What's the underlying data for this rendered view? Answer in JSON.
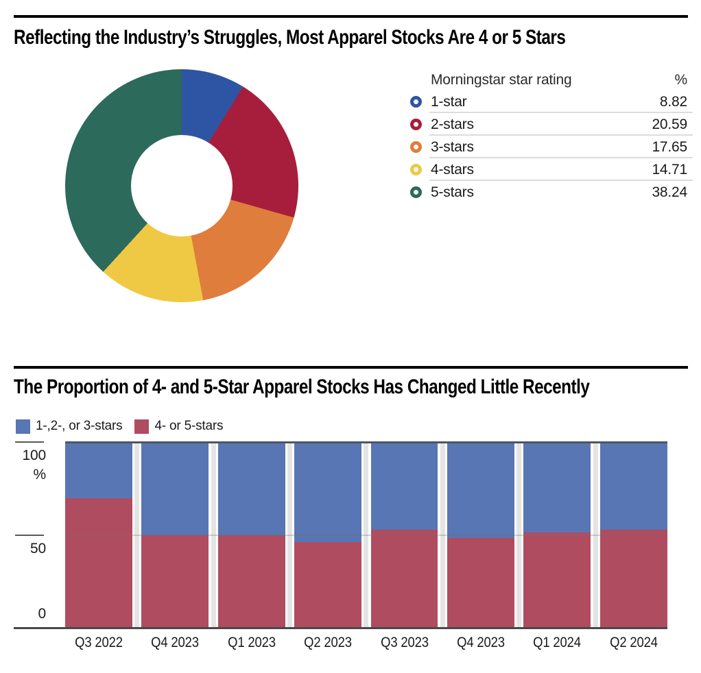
{
  "page": {
    "background": "#ffffff",
    "rule_color": "#000000"
  },
  "chart_data": [
    {
      "type": "pie",
      "subtype": "donut",
      "title": "Reflecting the Industry’s Struggles, Most Apparel Stocks Are 4 or 5 Stars",
      "legend_header": {
        "label": "Morningstar star rating",
        "value": "%"
      },
      "categories": [
        "1-star",
        "2-stars",
        "3-stars",
        "4-stars",
        "5-stars"
      ],
      "values": [
        8.82,
        20.59,
        17.65,
        14.71,
        38.24
      ],
      "colors": [
        "#2E55A3",
        "#A61E3C",
        "#DF7D3C",
        "#EFC944",
        "#2C6A5C"
      ],
      "start_angle_deg": 0,
      "direction": "clockwise",
      "legend_position": "right"
    },
    {
      "type": "bar",
      "subtype": "stacked-100-percent",
      "title": "The Proportion of 4- and 5-Star Apparel Stocks Has Changed Little Recently",
      "categories": [
        "Q3 2022",
        "Q4 2023",
        "Q1 2023",
        "Q2 2023",
        "Q3 2023",
        "Q4 2023",
        "Q1 2024",
        "Q2 2024"
      ],
      "series": [
        {
          "name": "4- or 5-stars",
          "color": "#B04C5F",
          "values": [
            70,
            50,
            50,
            46.5,
            53,
            48.5,
            51.5,
            53
          ]
        },
        {
          "name": "1-,2-, or 3-stars",
          "color": "#5876B4",
          "values": [
            30,
            50,
            50,
            53.5,
            47,
            51.5,
            48.5,
            47
          ]
        }
      ],
      "legend": [
        {
          "label": "1-,2-, or 3-stars",
          "color": "#5876B4"
        },
        {
          "label": "4- or 5-stars",
          "color": "#B04C5F"
        }
      ],
      "ylabel": "%",
      "ylim": [
        0,
        100
      ],
      "yticks": [
        100,
        50,
        0
      ],
      "ytick_labels": [
        "100",
        "50",
        "0"
      ],
      "grid": "horizontal line at 50 only",
      "legend_position": "top-left"
    }
  ]
}
